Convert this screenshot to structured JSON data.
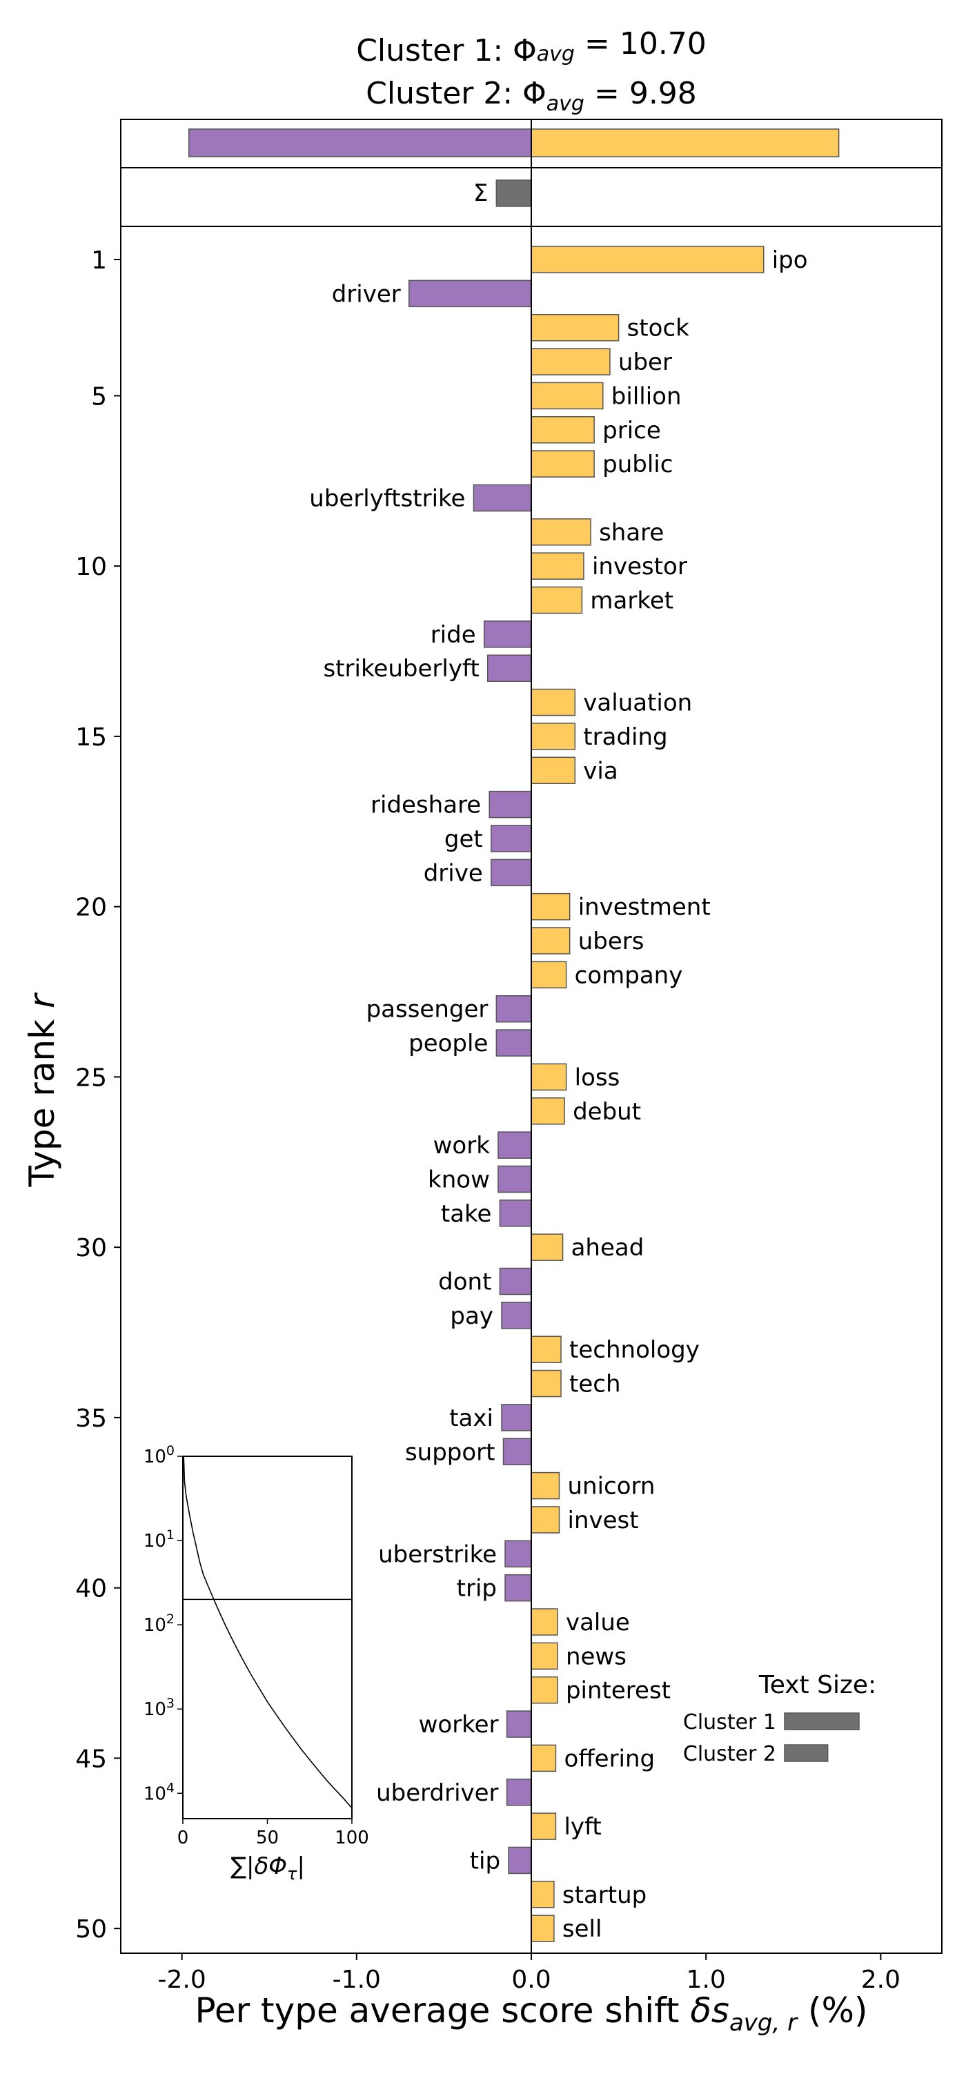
{
  "chart_data": {
    "type": "bar",
    "orientation": "horizontal",
    "title": {
      "line1": {
        "prefix": "Cluster 1: ",
        "symbol": "Φ",
        "subscript": "avg",
        "suffix": " = 10.70"
      },
      "line2": {
        "prefix": "Cluster 2: ",
        "symbol": "Φ",
        "subscript": "avg",
        "suffix": " = 9.98"
      }
    },
    "xlabel": {
      "text": "Per type average score shift ",
      "symbol": "δs",
      "subscript": "avg, r",
      "suffix": " (%)"
    },
    "ylabel": {
      "text": "Type rank ",
      "symbol": "r"
    },
    "xlim": [
      -2.35,
      2.35
    ],
    "x_ticks": [
      -2.0,
      -1.0,
      0.0,
      1.0,
      2.0
    ],
    "x_tick_labels": [
      "-2.0",
      "-1.0",
      "0.0",
      "1.0",
      "2.0"
    ],
    "rank_ticks": [
      1,
      5,
      10,
      15,
      20,
      25,
      30,
      35,
      40,
      45,
      50
    ],
    "rank_tick_labels": [
      "1",
      "5",
      "10",
      "15",
      "20",
      "25",
      "30",
      "35",
      "40",
      "45",
      "50"
    ],
    "colors": {
      "positive": "#fecb5c",
      "negative": "#9d76bb",
      "neutral": "#707070",
      "edge": "#555555"
    },
    "totals": {
      "negative_sum": -1.96,
      "positive_sum": 1.76
    },
    "sigma": {
      "label": "Σ",
      "value": -0.2
    },
    "bars": [
      {
        "rank": 1,
        "word": "ipo",
        "value": 1.33
      },
      {
        "rank": 2,
        "word": "driver",
        "value": -0.7
      },
      {
        "rank": 3,
        "word": "stock",
        "value": 0.5
      },
      {
        "rank": 4,
        "word": "uber",
        "value": 0.45
      },
      {
        "rank": 5,
        "word": "billion",
        "value": 0.41
      },
      {
        "rank": 6,
        "word": "price",
        "value": 0.36
      },
      {
        "rank": 7,
        "word": "public",
        "value": 0.36
      },
      {
        "rank": 8,
        "word": "uberlyftstrike",
        "value": -0.33
      },
      {
        "rank": 9,
        "word": "share",
        "value": 0.34
      },
      {
        "rank": 10,
        "word": "investor",
        "value": 0.3
      },
      {
        "rank": 11,
        "word": "market",
        "value": 0.29
      },
      {
        "rank": 12,
        "word": "ride",
        "value": -0.27
      },
      {
        "rank": 13,
        "word": "strikeuberlyft",
        "value": -0.25
      },
      {
        "rank": 14,
        "word": "valuation",
        "value": 0.25
      },
      {
        "rank": 15,
        "word": "trading",
        "value": 0.25
      },
      {
        "rank": 16,
        "word": "via",
        "value": 0.25
      },
      {
        "rank": 17,
        "word": "rideshare",
        "value": -0.24
      },
      {
        "rank": 18,
        "word": "get",
        "value": -0.23
      },
      {
        "rank": 19,
        "word": "drive",
        "value": -0.23
      },
      {
        "rank": 20,
        "word": "investment",
        "value": 0.22
      },
      {
        "rank": 21,
        "word": "ubers",
        "value": 0.22
      },
      {
        "rank": 22,
        "word": "company",
        "value": 0.2
      },
      {
        "rank": 23,
        "word": "passenger",
        "value": -0.2
      },
      {
        "rank": 24,
        "word": "people",
        "value": -0.2
      },
      {
        "rank": 25,
        "word": "loss",
        "value": 0.2
      },
      {
        "rank": 26,
        "word": "debut",
        "value": 0.19
      },
      {
        "rank": 27,
        "word": "work",
        "value": -0.19
      },
      {
        "rank": 28,
        "word": "know",
        "value": -0.19
      },
      {
        "rank": 29,
        "word": "take",
        "value": -0.18
      },
      {
        "rank": 30,
        "word": "ahead",
        "value": 0.18
      },
      {
        "rank": 31,
        "word": "dont",
        "value": -0.18
      },
      {
        "rank": 32,
        "word": "pay",
        "value": -0.17
      },
      {
        "rank": 33,
        "word": "technology",
        "value": 0.17
      },
      {
        "rank": 34,
        "word": "tech",
        "value": 0.17
      },
      {
        "rank": 35,
        "word": "taxi",
        "value": -0.17
      },
      {
        "rank": 36,
        "word": "support",
        "value": -0.16
      },
      {
        "rank": 37,
        "word": "unicorn",
        "value": 0.16
      },
      {
        "rank": 38,
        "word": "invest",
        "value": 0.16
      },
      {
        "rank": 39,
        "word": "uberstrike",
        "value": -0.15
      },
      {
        "rank": 40,
        "word": "trip",
        "value": -0.15
      },
      {
        "rank": 41,
        "word": "value",
        "value": 0.15
      },
      {
        "rank": 42,
        "word": "news",
        "value": 0.15
      },
      {
        "rank": 43,
        "word": "pinterest",
        "value": 0.15
      },
      {
        "rank": 44,
        "word": "worker",
        "value": -0.14
      },
      {
        "rank": 45,
        "word": "offering",
        "value": 0.14
      },
      {
        "rank": 46,
        "word": "uberdriver",
        "value": -0.14
      },
      {
        "rank": 47,
        "word": "lyft",
        "value": 0.14
      },
      {
        "rank": 48,
        "word": "tip",
        "value": -0.13
      },
      {
        "rank": 49,
        "word": "startup",
        "value": 0.13
      },
      {
        "rank": 50,
        "word": "sell",
        "value": 0.13
      }
    ],
    "inset": {
      "xlabel": {
        "prefix": "∑|",
        "symbol": "δΦ",
        "subscript": "τ",
        "suffix": "|"
      },
      "xlim": [
        0,
        100
      ],
      "x_ticks": [
        0,
        50,
        100
      ],
      "x_tick_labels": [
        "0",
        "50",
        "100"
      ],
      "ylog": true,
      "ylim": [
        1,
        20000
      ],
      "y_ticks": [
        {
          "base": "10",
          "exp": "0",
          "value": 1
        },
        {
          "base": "10",
          "exp": "1",
          "value": 10
        },
        {
          "base": "10",
          "exp": "2",
          "value": 100
        },
        {
          "base": "10",
          "exp": "3",
          "value": 1000
        },
        {
          "base": "10",
          "exp": "4",
          "value": 10000
        }
      ],
      "hline_rank": 50,
      "curve": [
        [
          0.5,
          1
        ],
        [
          1,
          2
        ],
        [
          2,
          3
        ],
        [
          4,
          5
        ],
        [
          6,
          8
        ],
        [
          8,
          12
        ],
        [
          10,
          18
        ],
        [
          12,
          25
        ],
        [
          15,
          35
        ],
        [
          20,
          60
        ],
        [
          25,
          100
        ],
        [
          30,
          160
        ],
        [
          35,
          250
        ],
        [
          40,
          380
        ],
        [
          45,
          560
        ],
        [
          50,
          820
        ],
        [
          55,
          1150
        ],
        [
          60,
          1600
        ],
        [
          65,
          2200
        ],
        [
          70,
          3000
        ],
        [
          75,
          4000
        ],
        [
          80,
          5300
        ],
        [
          85,
          7000
        ],
        [
          90,
          9000
        ],
        [
          95,
          11500
        ],
        [
          100,
          15000
        ]
      ]
    },
    "legend": {
      "title": "Text Size:",
      "placement": "lower-right",
      "entries": [
        {
          "label": "Cluster 1",
          "relative_size": 1.0
        },
        {
          "label": "Cluster 2",
          "relative_size": 0.58
        }
      ]
    }
  }
}
